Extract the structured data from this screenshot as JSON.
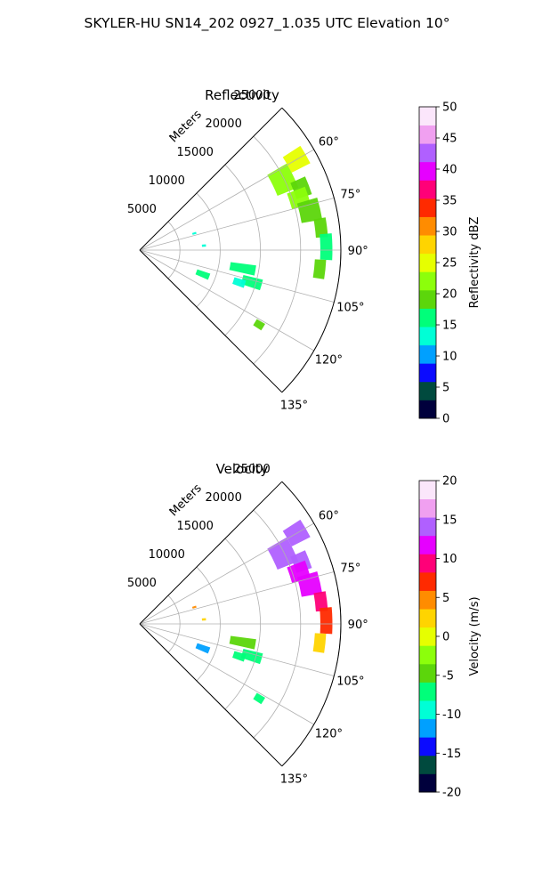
{
  "figure": {
    "suptitle": "SKYLER-HU  SN14_202  0927_1.035 UTC Elevation 10°"
  },
  "chart_data": [
    {
      "type": "polar-sector",
      "title": "Reflectivity",
      "radial_label": "Meters",
      "radial_ticks": [
        5000,
        10000,
        15000,
        20000,
        25000
      ],
      "angle_ticks_deg": [
        60,
        75,
        90,
        105,
        120,
        135
      ],
      "angle_range_deg": [
        45,
        135
      ],
      "r_max": 25000,
      "colorbar": {
        "label": "Reflectivity dBZ",
        "ticks": [
          0,
          5,
          10,
          15,
          20,
          25,
          30,
          35,
          40,
          45,
          50
        ],
        "range": [
          0,
          50
        ],
        "colors": [
          "#00003c",
          "#004a3e",
          "#0b0bff",
          "#00a0ff",
          "#00ffd6",
          "#00ff7a",
          "#5cd60b",
          "#8cff0b",
          "#e6ff00",
          "#ffd400",
          "#ff8c00",
          "#ff2a00",
          "#ff0078",
          "#e600ff",
          "#b060ff",
          "#f0a0f0",
          "#fbe6fb"
        ]
      },
      "echo_cells": [
        {
          "az": 60,
          "r": 22500,
          "dr": 2600,
          "da": 6,
          "value": 24
        },
        {
          "az": 64,
          "r": 19800,
          "dr": 2800,
          "da": 9,
          "value": 21
        },
        {
          "az": 69,
          "r": 21500,
          "dr": 2000,
          "da": 6,
          "value": 19
        },
        {
          "az": 72,
          "r": 20800,
          "dr": 2400,
          "da": 6,
          "value": 23
        },
        {
          "az": 77,
          "r": 21700,
          "dr": 2600,
          "da": 7,
          "value": 20
        },
        {
          "az": 83,
          "r": 22700,
          "dr": 1500,
          "da": 6,
          "value": 18
        },
        {
          "az": 89,
          "r": 23200,
          "dr": 1500,
          "da": 8,
          "value": 17
        },
        {
          "az": 96,
          "r": 22500,
          "dr": 1400,
          "da": 6,
          "value": 18
        },
        {
          "az": 100,
          "r": 13000,
          "dr": 3200,
          "da": 5,
          "value": 17
        },
        {
          "az": 106,
          "r": 14500,
          "dr": 2500,
          "da": 5,
          "value": 16
        },
        {
          "az": 111,
          "r": 8400,
          "dr": 1700,
          "da": 5,
          "value": 17
        },
        {
          "az": 108,
          "r": 13000,
          "dr": 1500,
          "da": 4,
          "value": 14
        },
        {
          "az": 122,
          "r": 17500,
          "dr": 1200,
          "da": 3,
          "value": 18
        },
        {
          "az": 73,
          "r": 7100,
          "dr": 500,
          "da": 2,
          "value": 13
        },
        {
          "az": 86,
          "r": 8000,
          "dr": 500,
          "da": 2,
          "value": 12
        }
      ]
    },
    {
      "type": "polar-sector",
      "title": "Velocity",
      "radial_label": "Meters",
      "radial_ticks": [
        5000,
        10000,
        15000,
        20000,
        25000
      ],
      "angle_ticks_deg": [
        60,
        75,
        90,
        105,
        120,
        135
      ],
      "angle_range_deg": [
        45,
        135
      ],
      "r_max": 25000,
      "colorbar": {
        "label": "Velocity (m/s)",
        "ticks": [
          -20,
          -15,
          -10,
          -5,
          0,
          5,
          10,
          15,
          20
        ],
        "range": [
          -20,
          20
        ],
        "colors": [
          "#00003c",
          "#004a3e",
          "#0b0bff",
          "#00a0ff",
          "#00ffd6",
          "#00ff7a",
          "#5cd60b",
          "#8cff0b",
          "#e6ff00",
          "#ffd400",
          "#ff8c00",
          "#ff2a00",
          "#ff0078",
          "#e600ff",
          "#b060ff",
          "#f0a0f0",
          "#fbe6fb"
        ]
      },
      "echo_cells": [
        {
          "az": 60,
          "r": 22500,
          "dr": 2600,
          "da": 6,
          "value": 15
        },
        {
          "az": 64,
          "r": 19800,
          "dr": 2800,
          "da": 9,
          "value": 14
        },
        {
          "az": 69,
          "r": 21500,
          "dr": 2000,
          "da": 6,
          "value": 13
        },
        {
          "az": 72,
          "r": 20800,
          "dr": 2400,
          "da": 6,
          "value": 11
        },
        {
          "az": 77,
          "r": 21700,
          "dr": 2600,
          "da": 7,
          "value": 12
        },
        {
          "az": 83,
          "r": 22700,
          "dr": 1500,
          "da": 6,
          "value": 10
        },
        {
          "az": 89,
          "r": 23200,
          "dr": 1500,
          "da": 8,
          "value": 7
        },
        {
          "az": 96,
          "r": 22500,
          "dr": 1400,
          "da": 6,
          "value": 2
        },
        {
          "az": 100,
          "r": 13000,
          "dr": 3200,
          "da": 5,
          "value": -4
        },
        {
          "az": 106,
          "r": 14500,
          "dr": 2500,
          "da": 5,
          "value": -6
        },
        {
          "az": 111,
          "r": 8400,
          "dr": 1700,
          "da": 5,
          "value": -12
        },
        {
          "az": 108,
          "r": 13000,
          "dr": 1500,
          "da": 4,
          "value": -8
        },
        {
          "az": 122,
          "r": 17500,
          "dr": 1200,
          "da": 3,
          "value": -7
        },
        {
          "az": 73,
          "r": 7100,
          "dr": 500,
          "da": 2,
          "value": 4
        },
        {
          "az": 86,
          "r": 8000,
          "dr": 500,
          "da": 2,
          "value": 3
        }
      ]
    }
  ]
}
